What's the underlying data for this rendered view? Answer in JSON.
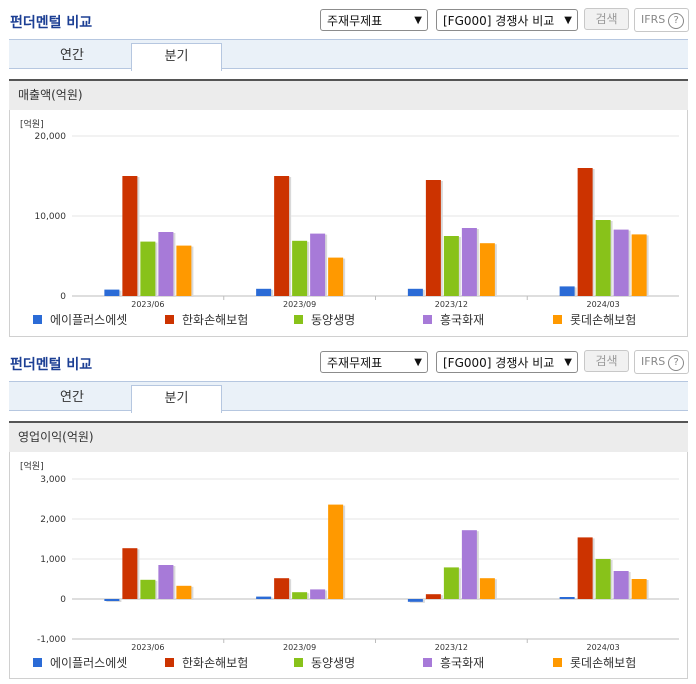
{
  "panels": [
    {
      "title": "펀더멘털 비교",
      "select_statement": "주재무제표",
      "select_compare": "[FG000] 경쟁사 비교",
      "search_label": "검색",
      "ifrs_label": "IFRS",
      "ifrs_help": "?",
      "tabs": [
        "연간",
        "분기"
      ],
      "active_tab": 1,
      "metric_label": "매출액(억원)",
      "unit_label": "[억원]"
    },
    {
      "title": "펀더멘털 비교",
      "select_statement": "주재무제표",
      "select_compare": "[FG000] 경쟁사 비교",
      "search_label": "검색",
      "ifrs_label": "IFRS",
      "ifrs_help": "?",
      "tabs": [
        "연간",
        "분기"
      ],
      "active_tab": 1,
      "metric_label": "영업이익(억원)",
      "unit_label": "[억원]"
    }
  ],
  "chart_data": [
    {
      "type": "bar",
      "title": "매출액(억원)",
      "ylabel": "[억원]",
      "categories": [
        "2023/06",
        "2023/09",
        "2023/12",
        "2024/03"
      ],
      "ylim": [
        0,
        20000
      ],
      "yticks": [
        "20,000",
        "10,000",
        "0"
      ],
      "ytick_values": [
        20000,
        10000,
        0
      ],
      "grid": true,
      "legend_position": "bottom",
      "series": [
        {
          "name": "에이플러스에셋",
          "color": "#2b6bd6",
          "values": [
            800,
            900,
            900,
            1200
          ]
        },
        {
          "name": "한화손해보험",
          "color": "#cc3300",
          "values": [
            15000,
            15000,
            14500,
            16000
          ]
        },
        {
          "name": "동양생명",
          "color": "#88c21a",
          "values": [
            6800,
            6900,
            7500,
            9500
          ]
        },
        {
          "name": "흥국화재",
          "color": "#a77ad8",
          "values": [
            8000,
            7800,
            8500,
            8300
          ]
        },
        {
          "name": "롯데손해보험",
          "color": "#ff9900",
          "values": [
            6300,
            4800,
            6600,
            7700
          ]
        }
      ]
    },
    {
      "type": "bar",
      "title": "영업이익(억원)",
      "ylabel": "[억원]",
      "categories": [
        "2023/06",
        "2023/09",
        "2023/12",
        "2024/03"
      ],
      "ylim": [
        -1000,
        3000
      ],
      "yticks": [
        "3,000",
        "2,000",
        "1,000",
        "0",
        "-1,000"
      ],
      "ytick_values": [
        3000,
        2000,
        1000,
        0,
        -1000
      ],
      "grid": true,
      "legend_position": "bottom",
      "series": [
        {
          "name": "에이플러스에셋",
          "color": "#2b6bd6",
          "values": [
            -50,
            60,
            -70,
            50
          ]
        },
        {
          "name": "한화손해보험",
          "color": "#cc3300",
          "values": [
            1270,
            520,
            120,
            1540
          ]
        },
        {
          "name": "동양생명",
          "color": "#88c21a",
          "values": [
            480,
            170,
            790,
            1000
          ]
        },
        {
          "name": "흥국화재",
          "color": "#a77ad8",
          "values": [
            850,
            240,
            1720,
            700
          ]
        },
        {
          "name": "롯데손해보험",
          "color": "#ff9900",
          "values": [
            330,
            2360,
            520,
            500
          ]
        }
      ]
    }
  ]
}
